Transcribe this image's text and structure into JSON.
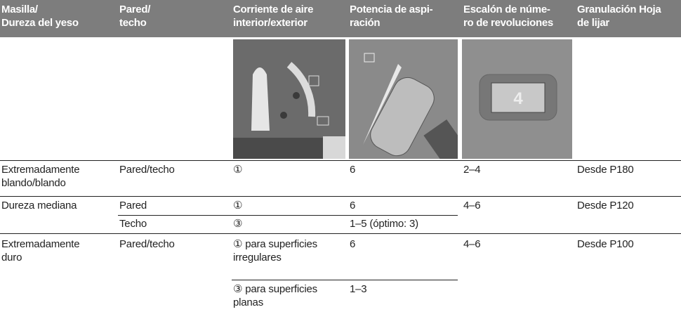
{
  "table": {
    "header": [
      "Masilla/\nDureza del yeso",
      "Pared/\ntecho",
      "Corriente de aire\ninterior/exterior",
      "Potencia de aspi-\nración",
      "Escalón de núme-\nro de revoluciones",
      "Granulación Hoja\nde lijar"
    ],
    "rows": [
      [
        "Extremadamente\nblando/blando",
        "Pared/techo",
        "①",
        "6",
        "2–4",
        "Desde P180"
      ],
      [
        "Dureza mediana",
        "Pared",
        "①",
        "6",
        "4–6",
        "Desde P120"
      ],
      [
        "Techo",
        "③",
        "1–5 (óptimo: 3)"
      ],
      [
        "Extremadamente\nduro",
        "Pared/techo",
        "① para superficies\nirregulares",
        "6",
        "4–6",
        "Desde P100"
      ],
      [
        "③ para superficies\nplanas",
        "1–3"
      ]
    ]
  }
}
